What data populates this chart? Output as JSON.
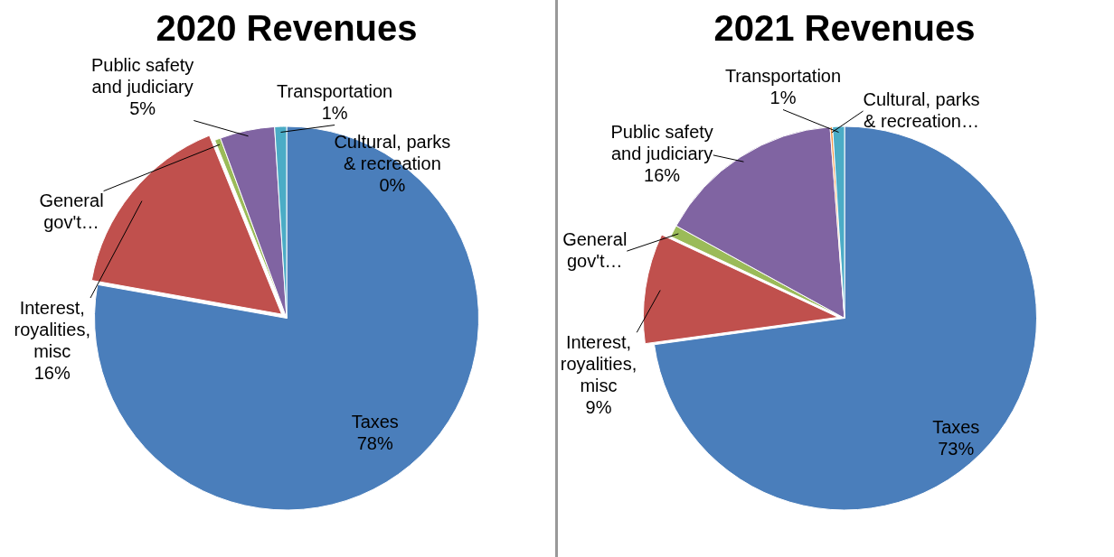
{
  "chart_data": [
    {
      "type": "pie",
      "title": "2020 Revenues",
      "categories": [
        "Taxes",
        "Interest, royalities, misc",
        "General gov't…",
        "Public safety and judiciary",
        "Cultural, parks & recreation",
        "Transportation"
      ],
      "values": [
        77.8,
        16.1,
        0.5,
        4.6,
        0,
        1.0
      ],
      "value_labels": [
        "78%",
        "16%",
        null,
        "5%",
        "0%",
        "1%"
      ],
      "colors": [
        "#4a7ebb",
        "#c0504d",
        "#9bbb59",
        "#8064a2",
        "#f79646",
        "#4bacc6"
      ],
      "legend": false
    },
    {
      "type": "pie",
      "title": "2021 Revenues",
      "categories": [
        "Taxes",
        "Interest, royalities, misc",
        "General gov't…",
        "Public safety and judiciary",
        "Cultural, parks & recreation…",
        "Transportation"
      ],
      "values": [
        72.8,
        9.2,
        1.0,
        15.8,
        0.2,
        1.0
      ],
      "value_labels": [
        "73%",
        "9%",
        null,
        "16%",
        null,
        "1%"
      ],
      "colors": [
        "#4a7ebb",
        "#c0504d",
        "#9bbb59",
        "#8064a2",
        "#f79646",
        "#4bacc6"
      ],
      "legend": false
    }
  ]
}
